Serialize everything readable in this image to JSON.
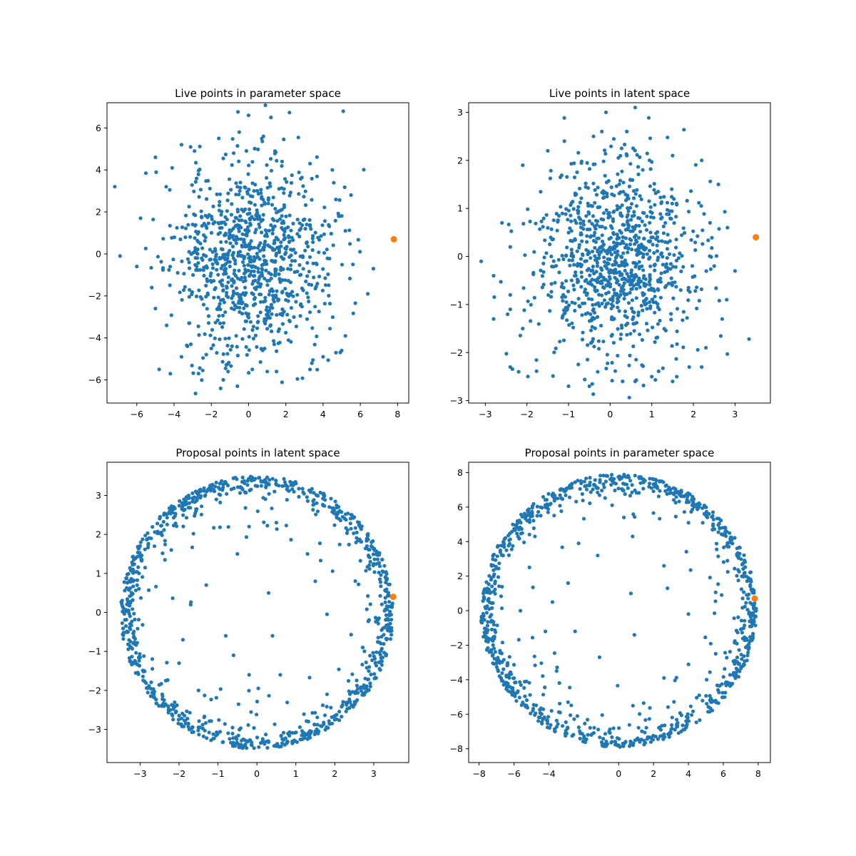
{
  "figure": {
    "background": "#ffffff",
    "live_color": "#1f77b4",
    "highlight_color": "#ff7f0e"
  },
  "chart_data": [
    {
      "type": "scatter",
      "title": "Live points in parameter space",
      "xlabel": "",
      "ylabel": "",
      "xlim": [
        -7.6,
        8.6
      ],
      "ylim": [
        -7.1,
        7.2
      ],
      "xticks": [
        -6,
        -4,
        -2,
        0,
        2,
        4,
        6,
        8
      ],
      "yticks": [
        -6,
        -4,
        -2,
        0,
        2,
        4,
        6
      ],
      "grid": false,
      "distribution": "gaussian",
      "n_points": 1000,
      "scale": [
        2.1,
        2.3
      ],
      "seed": 11,
      "points": [
        [
          0.0,
          6.6
        ],
        [
          1.2,
          6.5
        ],
        [
          -0.5,
          5.8
        ],
        [
          0.8,
          5.6
        ],
        [
          -1.6,
          5.5
        ],
        [
          -3.6,
          5.2
        ],
        [
          -2.9,
          4.9
        ],
        [
          -5.0,
          4.6
        ],
        [
          -0.8,
          4.8
        ],
        [
          1.8,
          4.4
        ],
        [
          3.3,
          4.3
        ],
        [
          4.5,
          4.0
        ],
        [
          -4.1,
          4.1
        ],
        [
          -5.8,
          1.7
        ],
        [
          -6.9,
          -0.1
        ],
        [
          -6.0,
          -0.6
        ],
        [
          -5.2,
          -1.6
        ],
        [
          -5.0,
          -2.6
        ],
        [
          -4.4,
          -3.4
        ],
        [
          -3.1,
          -4.3
        ],
        [
          -3.6,
          -4.9
        ],
        [
          -4.8,
          -5.5
        ],
        [
          -4.2,
          -5.7
        ],
        [
          -1.5,
          -6.4
        ],
        [
          -0.6,
          -6.3
        ],
        [
          -1.1,
          -5.6
        ],
        [
          0.2,
          -5.5
        ],
        [
          1.0,
          -5.6
        ],
        [
          1.5,
          -5.6
        ],
        [
          3.3,
          -5.5
        ],
        [
          3.4,
          -5.2
        ],
        [
          4.0,
          -4.9
        ],
        [
          5.0,
          -4.6
        ],
        [
          5.2,
          -3.9
        ],
        [
          6.4,
          -1.9
        ],
        [
          6.7,
          -0.7
        ],
        [
          5.6,
          -0.5
        ],
        [
          5.2,
          1.1
        ],
        [
          5.5,
          2.8
        ],
        [
          4.9,
          1.8
        ],
        [
          -2.0,
          -4.5
        ],
        [
          -0.6,
          3.2
        ]
      ],
      "highlight": [
        [
          7.8,
          0.7
        ]
      ]
    },
    {
      "type": "scatter",
      "title": "Live points in latent space",
      "xlabel": "",
      "ylabel": "",
      "xlim": [
        -3.4,
        3.85
      ],
      "ylim": [
        -3.05,
        3.2
      ],
      "xticks": [
        -3,
        -2,
        -1,
        0,
        1,
        2,
        3
      ],
      "yticks": [
        -3,
        -2,
        -1,
        0,
        1,
        2,
        3
      ],
      "grid": false,
      "distribution": "gaussian",
      "n_points": 1000,
      "scale": [
        0.95,
        1.0
      ],
      "seed": 23,
      "points": [
        [
          0.6,
          3.1
        ],
        [
          -0.1,
          3.0
        ],
        [
          0.4,
          2.6
        ],
        [
          -0.2,
          2.6
        ],
        [
          -0.4,
          2.5
        ],
        [
          -1.5,
          2.2
        ],
        [
          -1.1,
          2.4
        ],
        [
          -2.1,
          1.9
        ],
        [
          1.5,
          2.1
        ],
        [
          2.2,
          2.0
        ],
        [
          2.6,
          1.5
        ],
        [
          -2.6,
          0.7
        ],
        [
          -2.4,
          0.2
        ],
        [
          -3.1,
          -0.1
        ],
        [
          -2.8,
          -0.4
        ],
        [
          -2.4,
          -0.8
        ],
        [
          -2.4,
          -1.1
        ],
        [
          -2.1,
          -1.5
        ],
        [
          -2.4,
          -2.3
        ],
        [
          -2.2,
          -2.4
        ],
        [
          -1.0,
          -2.7
        ],
        [
          -0.5,
          -2.7
        ],
        [
          -0.3,
          -2.4
        ],
        [
          0.6,
          -2.6
        ],
        [
          1.0,
          -2.5
        ],
        [
          1.5,
          -2.6
        ],
        [
          1.6,
          -2.5
        ],
        [
          1.9,
          -2.3
        ],
        [
          2.2,
          -2.3
        ],
        [
          2.3,
          -1.9
        ],
        [
          2.8,
          -0.9
        ],
        [
          3.0,
          -0.3
        ],
        [
          2.5,
          -0.2
        ],
        [
          2.4,
          0.7
        ],
        [
          -2.8,
          -1.3
        ],
        [
          0.4,
          2.1
        ]
      ],
      "highlight": [
        [
          3.5,
          0.4
        ]
      ]
    },
    {
      "type": "scatter",
      "title": "Proposal points in latent space",
      "xlabel": "",
      "ylabel": "",
      "xlim": [
        -3.85,
        3.9
      ],
      "ylim": [
        -3.85,
        3.85
      ],
      "xticks": [
        -3,
        -2,
        -1,
        0,
        1,
        2,
        3
      ],
      "yticks": [
        -3,
        -2,
        -1,
        0,
        1,
        2,
        3
      ],
      "grid": false,
      "distribution": "shell",
      "n_points": 1000,
      "radius": 3.5,
      "seed": 37,
      "points": [
        [
          0.3,
          0.5
        ],
        [
          0.4,
          -0.6
        ],
        [
          -1.3,
          0.7
        ],
        [
          -1.7,
          0.2
        ],
        [
          -1.9,
          -0.7
        ],
        [
          -0.8,
          -0.6
        ],
        [
          -0.6,
          -1.1
        ],
        [
          -0.2,
          -1.6
        ],
        [
          0.6,
          -1.6
        ],
        [
          1.8,
          -0.05
        ],
        [
          -0.5,
          1.5
        ],
        [
          0.5,
          2.3
        ],
        [
          -0.2,
          2.2
        ],
        [
          1.3,
          1.5
        ],
        [
          1.5,
          0.8
        ],
        [
          -2.2,
          1.6
        ],
        [
          -2.0,
          -1.3
        ],
        [
          1.8,
          -2.1
        ],
        [
          -1.5,
          -2.0
        ]
      ],
      "highlight": [
        [
          3.5,
          0.4
        ]
      ]
    },
    {
      "type": "scatter",
      "title": "Proposal points in parameter space",
      "xlabel": "",
      "ylabel": "",
      "xlim": [
        -8.6,
        8.7
      ],
      "ylim": [
        -8.8,
        8.6
      ],
      "xticks": [
        -8,
        -6,
        -4,
        0,
        2,
        4,
        6,
        8
      ],
      "ytick_note": "",
      "yticks": [
        -8,
        -6,
        -4,
        -2,
        0,
        2,
        4,
        6,
        8
      ],
      "grid": false,
      "distribution": "shell",
      "n_points": 1000,
      "radius": 7.9,
      "seed": 53,
      "points": [
        [
          0.7,
          1.0
        ],
        [
          0.9,
          -1.4
        ],
        [
          -3.8,
          0.5
        ],
        [
          -2.9,
          1.6
        ],
        [
          -4.2,
          -1.2
        ],
        [
          -2.5,
          -1.2
        ],
        [
          -1.1,
          -2.7
        ],
        [
          2.6,
          -3.9
        ],
        [
          4.0,
          -0.2
        ],
        [
          -1.2,
          3.2
        ],
        [
          0.3,
          5.4
        ],
        [
          0.8,
          4.3
        ],
        [
          2.6,
          2.6
        ],
        [
          2.8,
          1.3
        ],
        [
          -4.8,
          4.3
        ]
      ],
      "highlight": [
        [
          7.8,
          0.7
        ]
      ]
    }
  ]
}
